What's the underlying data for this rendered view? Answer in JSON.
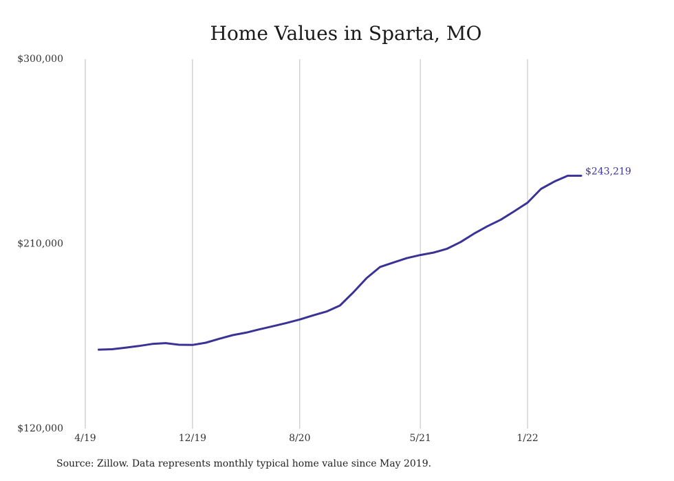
{
  "chart_data": {
    "type": "line",
    "title": "Home Values in Sparta, MO",
    "xlabel": "",
    "ylabel": "",
    "ylim": [
      120000,
      300000
    ],
    "yticks": [
      120000,
      210000,
      300000
    ],
    "ytick_labels": [
      "$120,000",
      "$210,000",
      "$300,000"
    ],
    "x_range": [
      "2019-04",
      "2022-07"
    ],
    "xticks": [
      "2019-04",
      "2019-12",
      "2020-08",
      "2021-05",
      "2022-01"
    ],
    "xtick_labels": [
      "4/19",
      "12/19",
      "8/20",
      "5/21",
      "1/22"
    ],
    "grid": "vertical",
    "line_color": "#3a3294",
    "series": [
      {
        "x": [
          "2019-05",
          "2019-06",
          "2019-07",
          "2019-08",
          "2019-09",
          "2019-10",
          "2019-11",
          "2019-12",
          "2020-01",
          "2020-02",
          "2020-03",
          "2020-04",
          "2020-05",
          "2020-06",
          "2020-07",
          "2020-08",
          "2020-09",
          "2020-10",
          "2020-11",
          "2020-12",
          "2021-01",
          "2021-02",
          "2021-03",
          "2021-04",
          "2021-05",
          "2021-06",
          "2021-07",
          "2021-08",
          "2021-09",
          "2021-10",
          "2021-11",
          "2021-12",
          "2022-01",
          "2022-02",
          "2022-03",
          "2022-04",
          "2022-05"
        ],
        "values": [
          158500,
          158700,
          159500,
          160300,
          161300,
          161700,
          160900,
          160800,
          161900,
          163800,
          165600,
          166800,
          168400,
          169900,
          171500,
          173200,
          175200,
          177100,
          180000,
          186400,
          193400,
          198800,
          201000,
          203100,
          204600,
          205800,
          207700,
          210900,
          215000,
          218600,
          221800,
          225900,
          230100,
          236800,
          240400,
          243219,
          243219
        ]
      }
    ],
    "annotations": [
      "$243,219"
    ]
  },
  "source_text": "Source: Zillow. Data represents monthly typical home value since May 2019."
}
